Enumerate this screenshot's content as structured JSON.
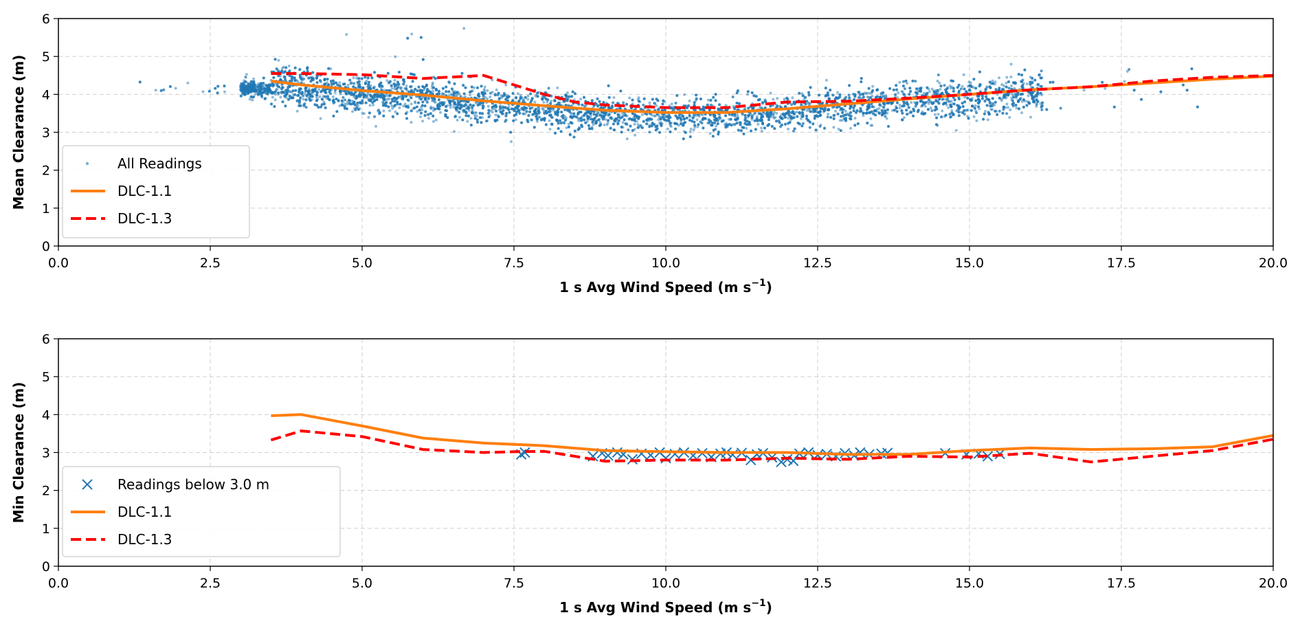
{
  "chart_data": [
    {
      "type": "scatter",
      "xlabel": "1 s Avg Wind Speed (m s",
      "xlabel_sup": "−1",
      "xlabel_end": ")",
      "ylabel": "Mean Clearance (m)",
      "xlim": [
        0,
        20
      ],
      "ylim": [
        0,
        6
      ],
      "xticks": [
        "0.0",
        "2.5",
        "5.0",
        "7.5",
        "10.0",
        "12.5",
        "15.0",
        "17.5",
        "20.0"
      ],
      "yticks": [
        "0",
        "1",
        "2",
        "3",
        "4",
        "5",
        "6"
      ],
      "grid": true,
      "legend_placement": "lower-left",
      "legend": [
        "All Readings",
        "DLC-1.1",
        "DLC-1.3"
      ],
      "scatter": {
        "name": "All Readings",
        "color": "#1f77b4",
        "x_range": [
          1.3,
          18.8
        ],
        "note_points": "dense cloud around the DLC-1.1 curve, y mostly 2.8–4.6"
      },
      "series": [
        {
          "name": "DLC-1.1",
          "color": "#ff7f0e",
          "style": "solid",
          "x": [
            3.5,
            4,
            5,
            6,
            7,
            8,
            9,
            10,
            11,
            12,
            13,
            14,
            15,
            16,
            17,
            18,
            19,
            20
          ],
          "y": [
            4.35,
            4.25,
            4.1,
            3.98,
            3.83,
            3.7,
            3.58,
            3.52,
            3.52,
            3.62,
            3.75,
            3.88,
            4.0,
            4.12,
            4.2,
            4.3,
            4.4,
            4.48
          ]
        },
        {
          "name": "DLC-1.3",
          "color": "#ff0000",
          "style": "dashed",
          "x": [
            3.5,
            4,
            5,
            6,
            7,
            8,
            8.5,
            9,
            10,
            11,
            12,
            13,
            14,
            15,
            16,
            17,
            18,
            19,
            20
          ],
          "y": [
            4.55,
            4.55,
            4.52,
            4.42,
            4.5,
            4.0,
            3.8,
            3.72,
            3.65,
            3.65,
            3.8,
            3.82,
            3.9,
            4.0,
            4.12,
            4.2,
            4.35,
            4.45,
            4.5
          ]
        }
      ]
    },
    {
      "type": "scatter",
      "xlabel": "1 s Avg Wind Speed (m s",
      "xlabel_sup": "−1",
      "xlabel_end": ")",
      "ylabel": "Min Clearance (m)",
      "xlim": [
        0,
        20
      ],
      "ylim": [
        0,
        6
      ],
      "xticks": [
        "0.0",
        "2.5",
        "5.0",
        "7.5",
        "10.0",
        "12.5",
        "15.0",
        "17.5",
        "20.0"
      ],
      "yticks": [
        "0",
        "1",
        "2",
        "3",
        "4",
        "5",
        "6"
      ],
      "grid": true,
      "legend_placement": "lower-left",
      "legend": [
        "Readings below 3.0 m",
        "DLC-1.1",
        "DLC-1.3"
      ],
      "markers": {
        "name": "Readings below 3.0 m",
        "color": "#1f77b4",
        "marker": "x",
        "x": [
          7.62,
          7.68,
          8.8,
          8.95,
          9.05,
          9.2,
          9.3,
          9.45,
          9.6,
          9.75,
          9.9,
          10.0,
          10.15,
          10.3,
          10.45,
          10.6,
          10.75,
          10.9,
          11.0,
          11.1,
          11.25,
          11.4,
          11.5,
          11.6,
          11.75,
          11.9,
          12.0,
          12.1,
          12.2,
          12.35,
          12.5,
          12.65,
          12.8,
          12.95,
          13.1,
          13.2,
          13.35,
          13.55,
          13.65,
          14.6,
          14.95,
          15.15,
          15.3,
          15.5
        ],
        "y": [
          2.95,
          3.0,
          2.9,
          2.98,
          2.92,
          3.0,
          2.95,
          2.82,
          2.97,
          2.93,
          3.0,
          2.85,
          2.96,
          3.0,
          2.92,
          2.98,
          2.88,
          2.97,
          3.0,
          2.94,
          2.99,
          2.8,
          2.95,
          2.98,
          2.87,
          2.75,
          2.82,
          2.78,
          2.97,
          3.0,
          2.93,
          2.96,
          2.9,
          2.98,
          2.92,
          3.0,
          2.95,
          2.97,
          2.99,
          2.98,
          2.95,
          2.97,
          2.9,
          2.96
        ]
      },
      "series": [
        {
          "name": "DLC-1.1",
          "color": "#ff7f0e",
          "style": "solid",
          "x": [
            3.5,
            4,
            5,
            6,
            7,
            8,
            9,
            10,
            11,
            12,
            13,
            14,
            15,
            16,
            17,
            18,
            19,
            20
          ],
          "y": [
            3.97,
            4.0,
            3.7,
            3.38,
            3.25,
            3.18,
            3.05,
            3.02,
            3.0,
            3.0,
            2.95,
            2.95,
            3.05,
            3.12,
            3.08,
            3.1,
            3.15,
            3.45
          ]
        },
        {
          "name": "DLC-1.3",
          "color": "#ff0000",
          "style": "dashed",
          "x": [
            3.5,
            4,
            5,
            6,
            7,
            7.5,
            8,
            9,
            10,
            11,
            12,
            13,
            14,
            15,
            16,
            17,
            18,
            19,
            20
          ],
          "y": [
            3.33,
            3.57,
            3.42,
            3.08,
            3.0,
            3.02,
            3.03,
            2.77,
            2.8,
            2.8,
            2.85,
            2.82,
            2.9,
            2.88,
            2.98,
            2.75,
            2.9,
            3.05,
            3.35
          ]
        }
      ]
    }
  ]
}
